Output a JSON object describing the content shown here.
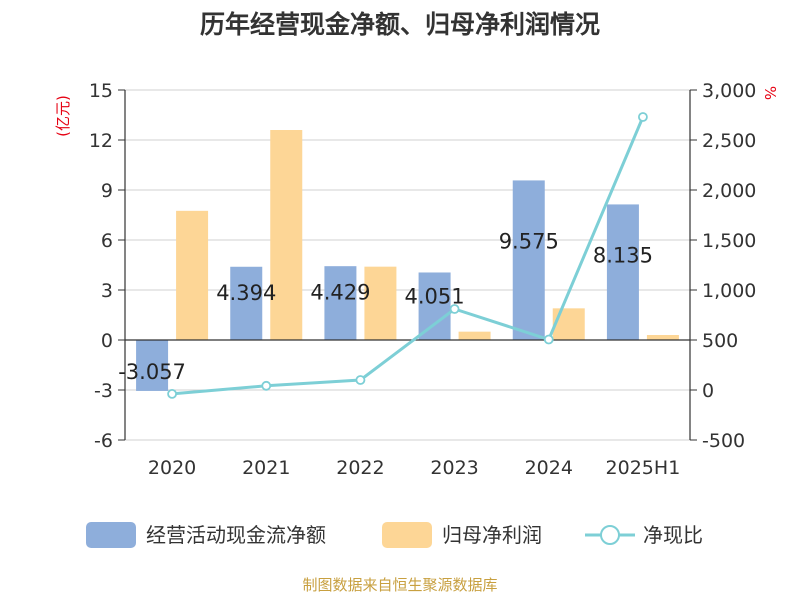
{
  "chart_data": {
    "type": "bar",
    "title": "历年经营现金净额、归母净利润情况",
    "categories": [
      "2020",
      "2021",
      "2022",
      "2023",
      "2024",
      "2025H1"
    ],
    "series": [
      {
        "name": "经营活动现金流净额",
        "axis": "left",
        "kind": "bar",
        "color": "#8eaedb",
        "values": [
          -3.057,
          4.394,
          4.429,
          4.051,
          9.575,
          8.135
        ],
        "labels": [
          "-3.057",
          "4.394",
          "4.429",
          "4.051",
          "9.575",
          "8.135"
        ]
      },
      {
        "name": "归母净利润",
        "axis": "left",
        "kind": "bar",
        "color": "#fdd696",
        "values": [
          7.75,
          12.6,
          4.4,
          0.5,
          1.9,
          0.3
        ]
      },
      {
        "name": "净现比",
        "axis": "right",
        "kind": "line",
        "color": "#7dcfd6",
        "values": [
          -39,
          42,
          100,
          810,
          505,
          2730
        ]
      }
    ],
    "left_axis": {
      "unit": "(亿元)",
      "min": -6,
      "max": 15,
      "ticks": [
        -6,
        -3,
        0,
        3,
        6,
        9,
        12,
        15
      ],
      "tick_labels": [
        "-6",
        "-3",
        "0",
        "3",
        "6",
        "9",
        "12",
        "15"
      ]
    },
    "right_axis": {
      "unit": "%",
      "min": -500,
      "max": 3000,
      "ticks": [
        -500,
        0,
        500,
        1000,
        1500,
        2000,
        2500,
        3000
      ],
      "tick_labels": [
        "-500",
        "0",
        "500",
        "1,000",
        "1,500",
        "2,000",
        "2,500",
        "3,000"
      ]
    },
    "grid": true,
    "legend_position": "bottom"
  },
  "source": "制图数据来自恒生聚源数据库"
}
